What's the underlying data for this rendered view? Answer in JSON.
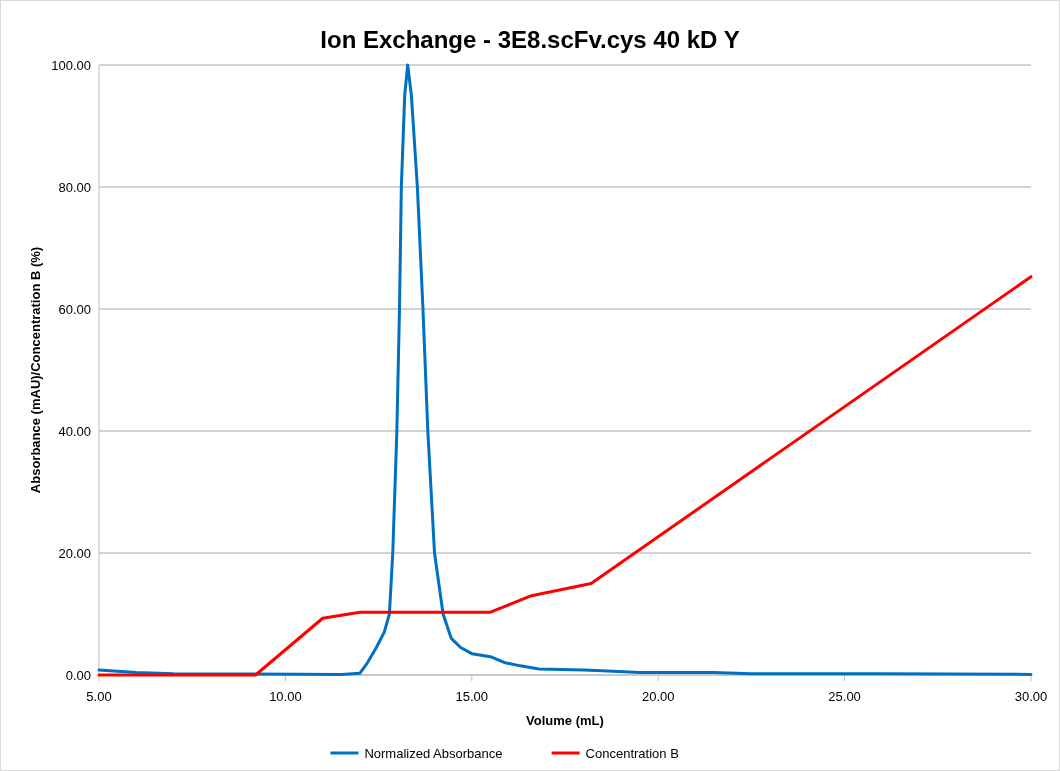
{
  "chart_data": {
    "type": "line",
    "title": "Ion Exchange - 3E8.scFv.cys 40 kD Y",
    "xlabel": "Volume (mL)",
    "ylabel": "Absorbance (mAU)/Concentration B (%)",
    "xlim": [
      5,
      30
    ],
    "ylim": [
      0,
      100
    ],
    "xticks": [
      {
        "value": 5,
        "label": "5.00"
      },
      {
        "value": 10,
        "label": "10.00"
      },
      {
        "value": 15,
        "label": "15.00"
      },
      {
        "value": 20,
        "label": "20.00"
      },
      {
        "value": 25,
        "label": "25.00"
      },
      {
        "value": 30,
        "label": "30.00"
      }
    ],
    "yticks": [
      {
        "value": 0,
        "label": "0.00"
      },
      {
        "value": 20,
        "label": "20.00"
      },
      {
        "value": 40,
        "label": "40.00"
      },
      {
        "value": 60,
        "label": "60.00"
      },
      {
        "value": 80,
        "label": "80.00"
      },
      {
        "value": 100,
        "label": "100.00"
      }
    ],
    "grid": "y",
    "legend": "bottom",
    "marker": "none",
    "line_style": "solid",
    "series": [
      {
        "name": "Normalized Absorbance",
        "color": "#0070c0",
        "x": [
          5,
          6,
          7,
          11.5,
          12,
          12.2,
          12.44,
          12.65,
          12.79,
          12.88,
          12.99,
          13.06,
          13.11,
          13.2,
          13.28,
          13.38,
          13.54,
          13.69,
          13.82,
          14,
          14.23,
          14.45,
          14.7,
          15,
          15.5,
          15.9,
          16.3,
          16.8,
          18,
          18.5,
          19.5,
          21.5,
          22.5,
          26,
          30
        ],
        "values": [
          0.8,
          0.4,
          0.2,
          0.1,
          0.3,
          2,
          4.5,
          7,
          10,
          20,
          40,
          60,
          80,
          95,
          100,
          95,
          80,
          60,
          40,
          20,
          10,
          6,
          4.5,
          3.5,
          3,
          2,
          1.5,
          1,
          0.8,
          0.7,
          0.4,
          0.4,
          0.2,
          0.2,
          0.1
        ]
      },
      {
        "name": "Concentration B",
        "color": "#ff0000",
        "x": [
          5,
          9.2,
          11,
          12,
          15.5,
          16.6,
          18.2,
          30
        ],
        "values": [
          0,
          0,
          9.3,
          10.3,
          10.3,
          13,
          15,
          65.3
        ]
      }
    ]
  }
}
